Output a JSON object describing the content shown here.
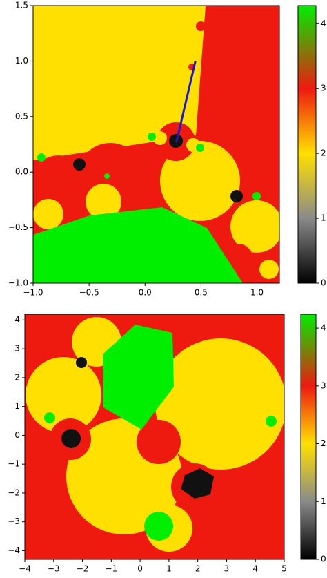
{
  "chart_data": [
    {
      "type": "image",
      "xlim": [
        -1,
        1.2
      ],
      "ylim": [
        -1,
        1.5
      ],
      "xticks": [
        {
          "value": -1,
          "label": "−1.0"
        },
        {
          "value": -0.5,
          "label": "−0.5"
        },
        {
          "value": 0,
          "label": "0.0"
        },
        0.5,
        {
          "value": 1,
          "label": "1.0"
        }
      ],
      "yticks": [
        {
          "value": -1,
          "label": "−1.0"
        },
        {
          "value": -0.5,
          "label": "−0.5"
        },
        {
          "value": 0,
          "label": "0.0"
        },
        0.5,
        {
          "value": 1,
          "label": "1.0"
        },
        1.5
      ],
      "line": {
        "x": [
          0.28,
          0.45
        ],
        "y": [
          0.27,
          1.0
        ],
        "color": "#1a1acc"
      },
      "colorbar": {
        "lim": [
          0,
          4.28
        ],
        "ticks": [
          0,
          1,
          2,
          3,
          4
        ],
        "stops": [
          0,
          1,
          2,
          3,
          4.28
        ],
        "colors": [
          "#000000",
          "#8a8a8a",
          "#ffe000",
          "#ee1a10",
          "#00ee00"
        ]
      }
    },
    {
      "type": "image",
      "xlim": [
        -4,
        5
      ],
      "ylim": [
        -4.3,
        4.2
      ],
      "xticks": [
        {
          "value": -4,
          "label": "−4"
        },
        {
          "value": -3,
          "label": "−3"
        },
        {
          "value": -2,
          "label": "−2"
        },
        {
          "value": -1,
          "label": "−1"
        },
        0,
        1,
        2,
        3,
        4,
        5
      ],
      "yticks": [
        {
          "value": -4,
          "label": "−4"
        },
        {
          "value": -3,
          "label": "−3"
        },
        {
          "value": -2,
          "label": "−2"
        },
        {
          "value": -1,
          "label": "−1"
        },
        0,
        1,
        2,
        3,
        4
      ],
      "colorbar": {
        "lim": [
          0,
          4.24
        ],
        "ticks": [
          0,
          1,
          2,
          3,
          4
        ],
        "stops": [
          0,
          1,
          2,
          3,
          4.24
        ],
        "colors": [
          "#000000",
          "#8a8a8a",
          "#ffe000",
          "#ee1a10",
          "#00ee00"
        ]
      }
    }
  ]
}
